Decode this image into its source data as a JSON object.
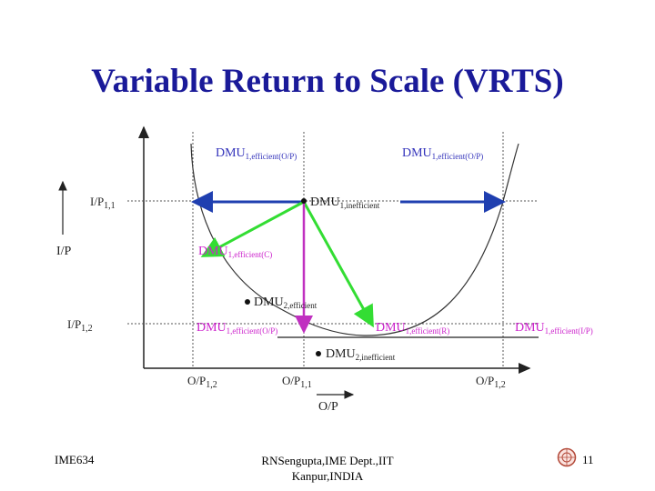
{
  "slide": {
    "title": "Variable Return to Scale (VRTS)",
    "footer_left": "IME634",
    "footer_center_line1": "RNSengupta,IME Dept.,IIT",
    "footer_center_line2": "Kanpur,INDIA",
    "page_number": "11"
  },
  "axes": {
    "y_label": "I/P",
    "x_label": "O/P",
    "y_ticks": [
      {
        "main": "I/P",
        "sub": "1,1"
      },
      {
        "main": "I/P",
        "sub": "1,2"
      }
    ],
    "x_ticks": [
      {
        "main": "O/P",
        "sub": "1,2"
      },
      {
        "main": "O/P",
        "sub": "1,1"
      },
      {
        "main": "O/P",
        "sub": "1,2"
      }
    ]
  },
  "labels": {
    "dmu1_eff_op_left": {
      "main": "DMU",
      "sub": "1,efficient(O/P)"
    },
    "dmu1_eff_op_right": {
      "main": "DMU",
      "sub": "1,efficient(O/P)"
    },
    "dmu1_inefficient": {
      "main": "DMU",
      "sub": "1,inefficient"
    },
    "dmu1_eff_c": {
      "main": "DMU",
      "sub": "1,efficient(C)"
    },
    "dmu2_efficient": {
      "main": "DMU",
      "sub": "2,efficient"
    },
    "dmu1_eff_op_low": {
      "main": "DMU",
      "sub": "1,efficient(O/P)"
    },
    "dmu1_eff_r": {
      "main": "DMU",
      "sub": "1,efficient(R)"
    },
    "dmu1_eff_ip": {
      "main": "DMU",
      "sub": "1,efficient(I/P)"
    },
    "dmu2_inefficient": {
      "main": "DMU",
      "sub": "2,inefficient"
    }
  },
  "colors": {
    "title": "#1a1a99",
    "blue_arrow": "#1f3fb0",
    "green_arrow": "#33dd33",
    "magenta_arrow": "#c030c0",
    "label_blue": "#3333bb",
    "label_magenta": "#cc22cc",
    "label_green": "#22bb22"
  }
}
